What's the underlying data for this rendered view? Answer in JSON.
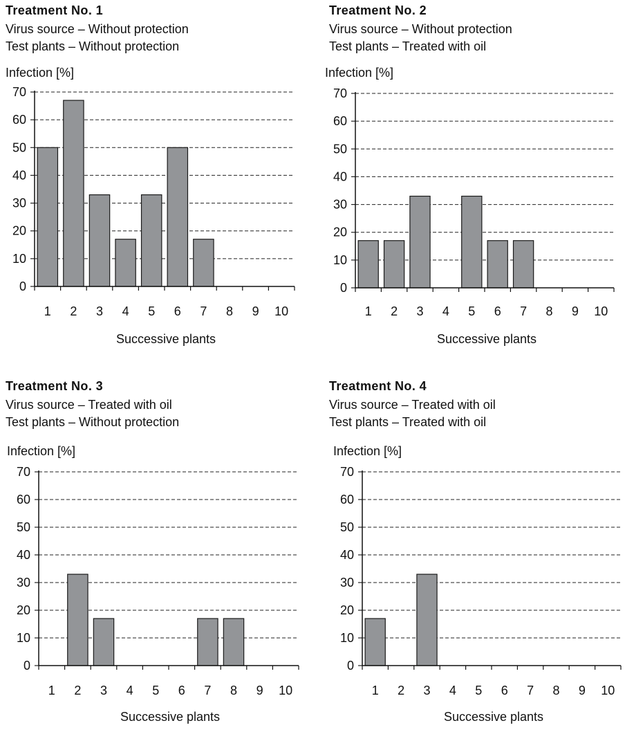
{
  "panels": [
    {
      "title": "Treatment  No. 1",
      "line1": "Virus source – Without protection",
      "line2": "Test plants – Without protection"
    },
    {
      "title": "Treatment  No. 2",
      "line1": "Virus source  – Without protection",
      "line2": "Test plants – Treated with oil"
    },
    {
      "title": "Treatment  No. 3",
      "line1": "Virus source – Treated with oil",
      "line2": "Test plants – Without protection"
    },
    {
      "title": "Treatment  No. 4",
      "line1": "Virus source – Treated with oil",
      "line2": "Test plants – Treated with oil"
    }
  ],
  "chart_data": [
    {
      "type": "bar",
      "ylabel": "Infection [%]",
      "xlabel": "Successive plants",
      "categories": [
        "1",
        "2",
        "3",
        "4",
        "5",
        "6",
        "7",
        "8",
        "9",
        "10"
      ],
      "values": [
        50,
        67,
        33,
        17,
        33,
        50,
        17,
        0,
        0,
        0
      ],
      "ylim": [
        0,
        70
      ],
      "yticks": [
        0,
        10,
        20,
        30,
        40,
        50,
        60,
        70
      ],
      "grid": "dashed horizontal",
      "bar_color": "#939598"
    },
    {
      "type": "bar",
      "ylabel": "Infection [%]",
      "xlabel": "Successive plants",
      "categories": [
        "1",
        "2",
        "3",
        "4",
        "5",
        "6",
        "7",
        "8",
        "9",
        "10"
      ],
      "values": [
        17,
        17,
        33,
        0,
        33,
        17,
        17,
        0,
        0,
        0
      ],
      "ylim": [
        0,
        70
      ],
      "yticks": [
        0,
        10,
        20,
        30,
        40,
        50,
        60,
        70
      ],
      "grid": "dashed horizontal",
      "bar_color": "#939598"
    },
    {
      "type": "bar",
      "ylabel": "Infection [%]",
      "xlabel": "Successive plants",
      "categories": [
        "1",
        "2",
        "3",
        "4",
        "5",
        "6",
        "7",
        "8",
        "9",
        "10"
      ],
      "values": [
        0,
        33,
        17,
        0,
        0,
        0,
        17,
        17,
        0,
        0
      ],
      "ylim": [
        0,
        70
      ],
      "yticks": [
        0,
        10,
        20,
        30,
        40,
        50,
        60,
        70
      ],
      "grid": "dashed horizontal",
      "bar_color": "#939598"
    },
    {
      "type": "bar",
      "ylabel": "Infection [%]",
      "xlabel": "Successive plants",
      "categories": [
        "1",
        "2",
        "3",
        "4",
        "5",
        "6",
        "7",
        "8",
        "9",
        "10"
      ],
      "values": [
        17,
        0,
        33,
        0,
        0,
        0,
        0,
        0,
        0,
        0
      ],
      "ylim": [
        0,
        70
      ],
      "yticks": [
        0,
        10,
        20,
        30,
        40,
        50,
        60,
        70
      ],
      "grid": "dashed horizontal",
      "bar_color": "#939598"
    }
  ]
}
